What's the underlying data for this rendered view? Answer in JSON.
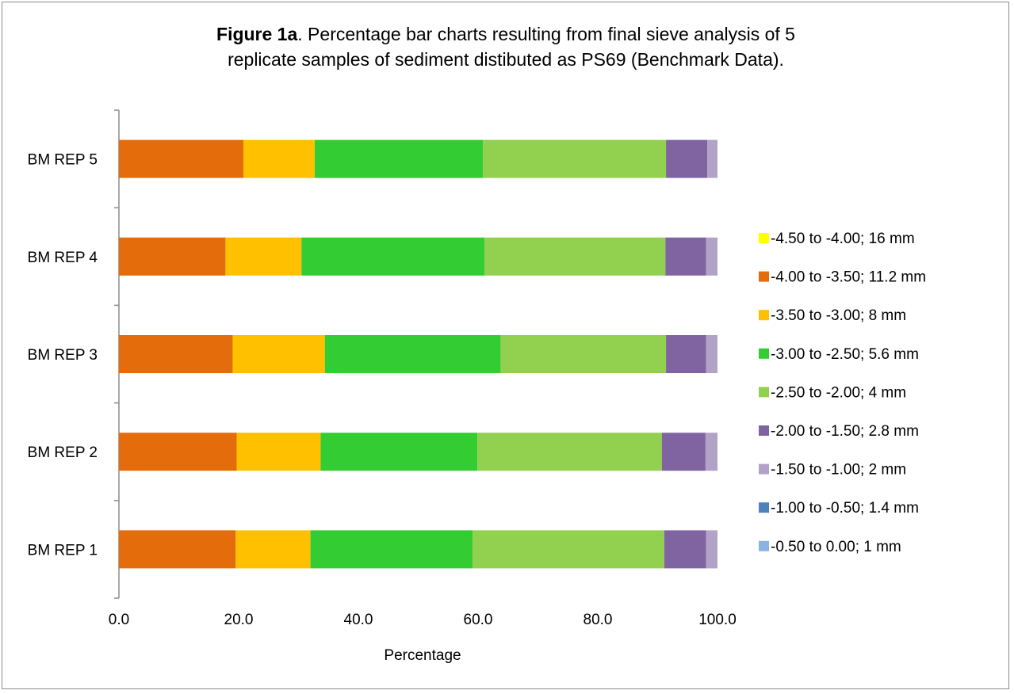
{
  "chart_data": {
    "type": "bar",
    "orientation": "horizontal",
    "stacked": true,
    "title": {
      "bold": "Figure 1a",
      "rest": ".  Percentage bar charts resulting from final sieve analysis of 5",
      "line2": "replicate samples of sediment distibuted as PS69 (Benchmark Data)."
    },
    "xlabel": "Percentage",
    "ylabel": "",
    "xlim": [
      0,
      100
    ],
    "x_ticks": [
      "0.0",
      "20.0",
      "40.0",
      "60.0",
      "80.0",
      "100.0"
    ],
    "categories": [
      "BM REP 1",
      "BM REP 2",
      "BM REP 3",
      "BM REP 4",
      "BM REP 5"
    ],
    "series": [
      {
        "name": "-4.50 to -4.00; 16 mm",
        "color": "#ffff00",
        "values": [
          0,
          0,
          0,
          0,
          0
        ]
      },
      {
        "name": "-4.00 to -3.50; 11.2 mm",
        "color": "#e46c0a",
        "values": [
          19.5,
          19.7,
          19.0,
          17.8,
          20.8
        ]
      },
      {
        "name": "-3.50 to -3.00; 8 mm",
        "color": "#ffc000",
        "values": [
          12.5,
          14.0,
          15.4,
          12.7,
          11.9
        ]
      },
      {
        "name": "-3.00 to -2.50; 5.6 mm",
        "color": "#33cc33",
        "values": [
          27.1,
          26.2,
          29.4,
          30.6,
          28.1
        ]
      },
      {
        "name": "-2.50 to -2.00; 4 mm",
        "color": "#92d050",
        "values": [
          32.0,
          30.8,
          27.6,
          30.2,
          30.6
        ]
      },
      {
        "name": "-2.00 to -1.50; 2.8 mm",
        "color": "#8064a2",
        "values": [
          7.0,
          7.3,
          6.7,
          6.8,
          6.9
        ]
      },
      {
        "name": "-1.50 to -1.00; 2 mm",
        "color": "#b3a2c7",
        "values": [
          1.9,
          2.0,
          1.9,
          1.9,
          1.7
        ]
      },
      {
        "name": "-1.00 to -0.50; 1.4 mm",
        "color": "#4f81bd",
        "values": [
          0,
          0,
          0,
          0,
          0
        ]
      },
      {
        "name": "-0.50 to 0.00; 1 mm",
        "color": "#8db3e2",
        "values": [
          0,
          0,
          0,
          0,
          0
        ]
      }
    ],
    "grid": false,
    "legend_position": "right"
  }
}
